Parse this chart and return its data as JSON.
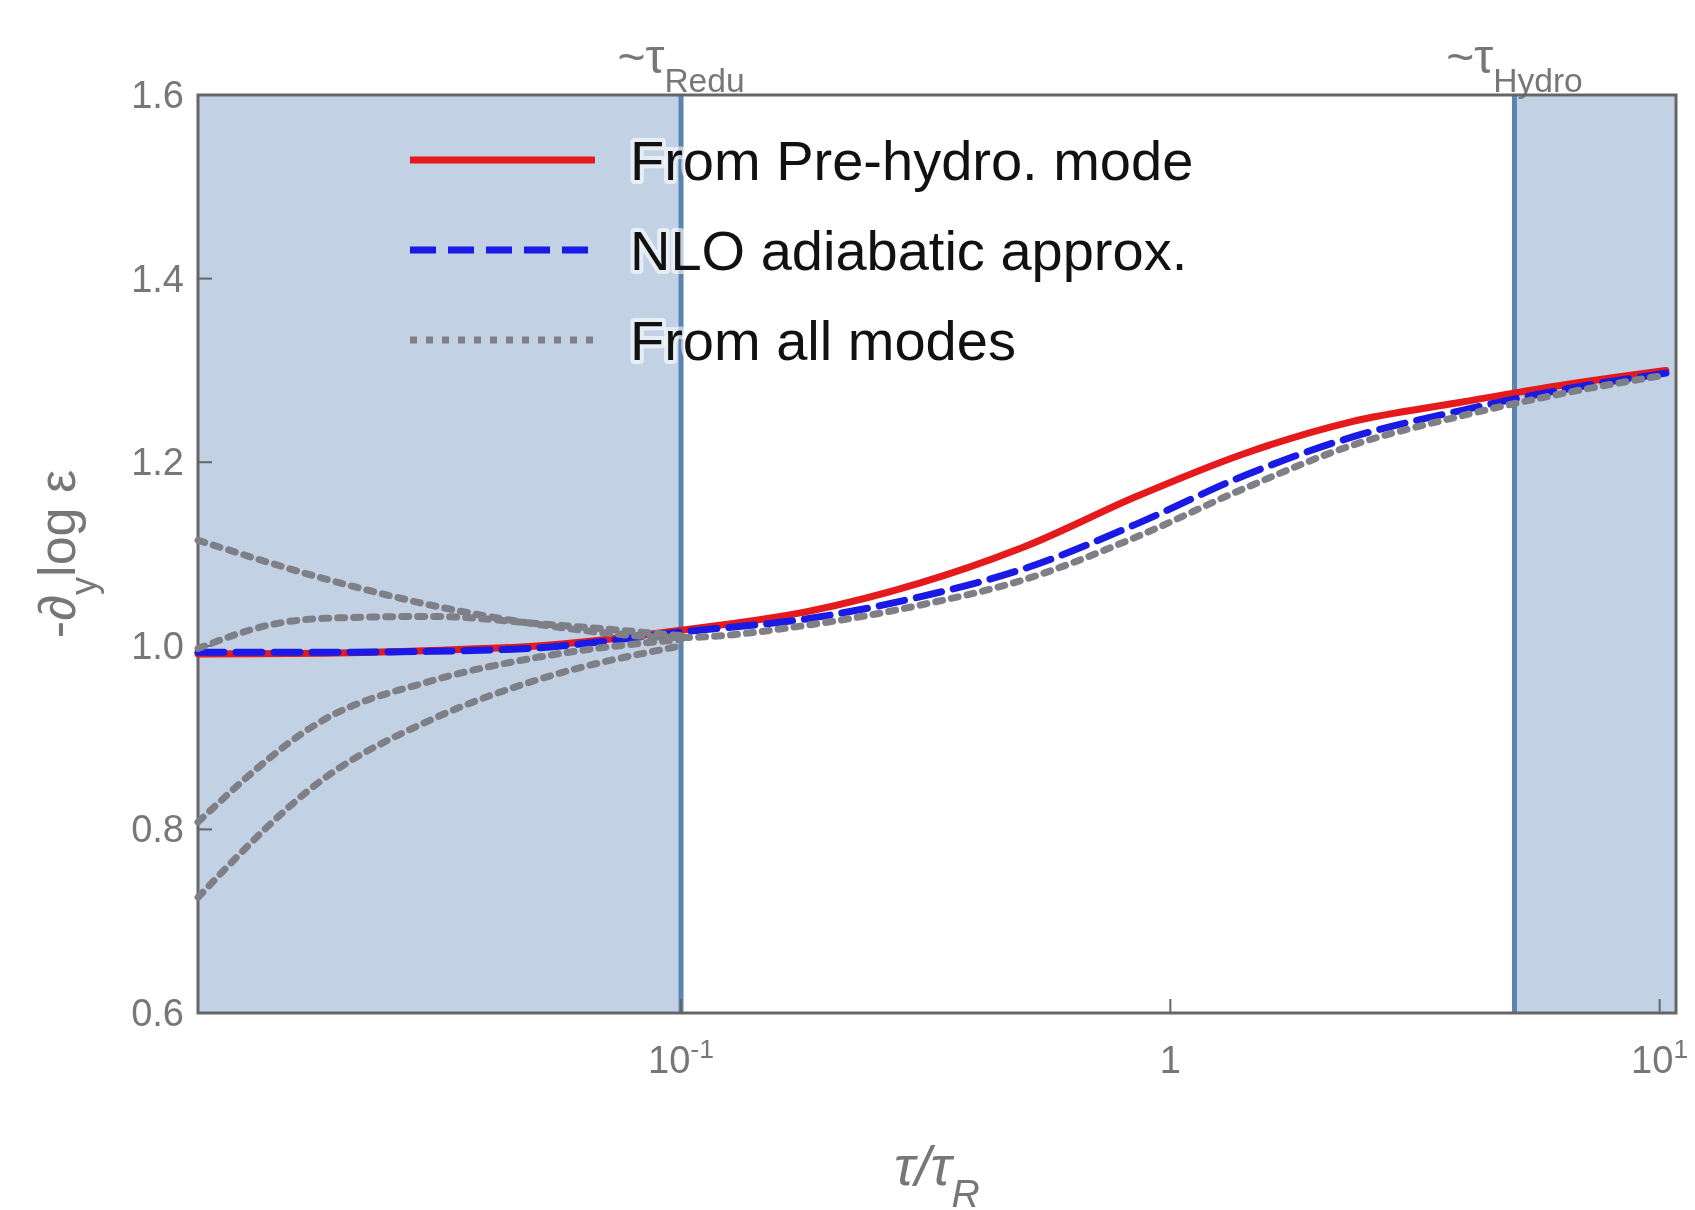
{
  "chart_data": {
    "type": "line",
    "xlabel": "τ/τ$_{R}$",
    "ylabel": "-∂$_{y}$log ε",
    "log": "x",
    "xlim": [
      0.0103,
      10.8
    ],
    "ylim": [
      0.6,
      1.6
    ],
    "xticks": [
      {
        "value": 0.1,
        "label": "10$^{-1}$"
      },
      1,
      {
        "value": 10,
        "label": "10$^{1}$"
      }
    ],
    "yticks": [
      {
        "value": 0.6,
        "label": "0.6"
      },
      {
        "value": 0.8,
        "label": "0.8"
      },
      {
        "value": 1.0,
        "label": "1.0"
      },
      {
        "value": 1.2,
        "label": "1.2"
      },
      {
        "value": 1.4,
        "label": "1.4"
      },
      {
        "value": 1.6,
        "label": "1.6"
      }
    ],
    "bands": [
      {
        "axis": "x",
        "from": 0.0103,
        "to": 0.1,
        "color": "#c2d2e4"
      },
      {
        "axis": "x",
        "from": 5.05,
        "to": 10.8,
        "color": "#c2d2e4"
      }
    ],
    "ref_lines": [
      {
        "axis": "x",
        "value": 0.1,
        "label": "~τ$_{Redu}$",
        "color": "#5b84b1"
      },
      {
        "axis": "x",
        "value": 5.05,
        "label": "~τ$_{Hydro}$",
        "color": "#5b84b1"
      }
    ],
    "legend": "top",
    "series": [
      {
        "name": "From Pre-hydro. mode",
        "color": "#e41a1c",
        "line_style": "solid",
        "x": [
          0.0103,
          0.0187,
          0.031,
          0.0516,
          0.1,
          0.184,
          0.306,
          0.509,
          0.847,
          1.41,
          2.34,
          3.9,
          6.49,
          10.3
        ],
        "values": [
          0.991,
          0.992,
          0.995,
          1.0,
          1.017,
          1.038,
          1.068,
          1.109,
          1.162,
          1.209,
          1.244,
          1.265,
          1.285,
          1.3
        ]
      },
      {
        "name": "NLO adiabatic approx.",
        "color": "#1a1ae6",
        "line_style": "dashed",
        "x": [
          0.0103,
          0.0187,
          0.031,
          0.0516,
          0.1,
          0.184,
          0.306,
          0.509,
          0.847,
          1.41,
          2.34,
          3.9,
          6.49,
          10.3
        ],
        "values": [
          0.993,
          0.993,
          0.994,
          0.998,
          1.015,
          1.03,
          1.053,
          1.085,
          1.132,
          1.185,
          1.227,
          1.256,
          1.28,
          1.297
        ]
      },
      {
        "name": "From all modes",
        "color": "#7f7f87",
        "line_style": "dotted",
        "x": [
          0.0103,
          0.0187,
          0.031,
          0.0516,
          0.1,
          0.184,
          0.306,
          0.509,
          0.847,
          1.41,
          2.34,
          3.9,
          6.49,
          10.3
        ],
        "values": [
          1.115,
          1.073,
          1.044,
          1.023,
          1.009,
          1.023,
          1.044,
          1.073,
          1.118,
          1.171,
          1.218,
          1.25,
          1.276,
          1.295
        ]
      },
      {
        "color": "#7f7f87",
        "line_style": "dotted",
        "x": [
          0.0103,
          0.0145,
          0.0187,
          0.031,
          0.0516,
          0.1
        ],
        "values": [
          0.997,
          1.023,
          1.03,
          1.032,
          1.024,
          1.011
        ]
      },
      {
        "color": "#7f7f87",
        "line_style": "dotted",
        "x": [
          0.0103,
          0.0187,
          0.031,
          0.0516,
          0.1
        ],
        "values": [
          0.808,
          0.92,
          0.962,
          0.988,
          1.007
        ]
      },
      {
        "color": "#7f7f87",
        "line_style": "dotted",
        "x": [
          0.0103,
          0.0187,
          0.031,
          0.0516,
          0.1
        ],
        "values": [
          0.726,
          0.856,
          0.92,
          0.964,
          1.0
        ]
      }
    ]
  }
}
